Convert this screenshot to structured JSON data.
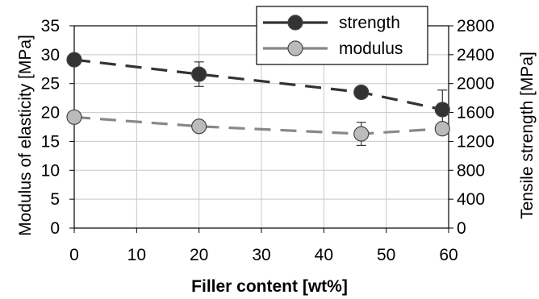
{
  "chart_data": {
    "type": "line",
    "xlabel": "Filler content [wt%]",
    "ylabel_left": "Modulus of elasticity [MPa]",
    "ylabel_right": "Tensile strength [MPa]",
    "xlim": [
      0,
      60
    ],
    "ylim_left": [
      0,
      35
    ],
    "ylim_right": [
      0,
      2800
    ],
    "x_ticks": [
      "0",
      "10",
      "20",
      "30",
      "40",
      "50",
      "60"
    ],
    "y_left_ticks": [
      "0",
      "5",
      "10",
      "15",
      "20",
      "25",
      "30",
      "35"
    ],
    "y_right_ticks": [
      "0",
      "400",
      "800",
      "1200",
      "1600",
      "2000",
      "2400",
      "2800"
    ],
    "grid": true,
    "legend_position": "top-right",
    "series": [
      {
        "name": "strength",
        "axis": "right",
        "color": "#333333",
        "line_style": "dashed",
        "x": [
          0,
          20,
          46,
          59
        ],
        "y": [
          2330,
          2130,
          1880,
          1640
        ],
        "err": [
          0,
          170,
          0,
          270
        ]
      },
      {
        "name": "modulus",
        "axis": "left",
        "color": "#bbbbbb",
        "line_color": "#888888",
        "line_style": "dashed",
        "x": [
          0,
          20,
          46,
          59
        ],
        "y": [
          19.2,
          17.6,
          16.3,
          17.2
        ],
        "err": [
          0,
          0,
          2.0,
          0
        ]
      }
    ]
  }
}
